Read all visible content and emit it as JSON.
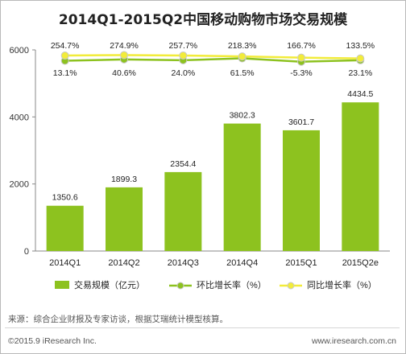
{
  "title": "2014Q1-2015Q2中国移动购物市场交易规模",
  "source_note": "来源：综合企业财报及专家访谈，根据艾瑞统计模型核算。",
  "copyright": "©2015.9 iResearch Inc.",
  "website": "www.iresearch.com.cn",
  "chart_data": {
    "type": "bar",
    "categories": [
      "2014Q1",
      "2014Q2",
      "2014Q3",
      "2014Q4",
      "2015Q1",
      "2015Q2e"
    ],
    "ylim": [
      0,
      6000
    ],
    "yticks": [
      0,
      2000,
      4000,
      6000
    ],
    "grid": false,
    "legend_position": "bottom",
    "series": [
      {
        "name": "交易规模（亿元）",
        "kind": "bar",
        "color": "#8dc21f",
        "values": [
          1350.6,
          1899.3,
          2354.4,
          3802.3,
          3601.7,
          4434.5
        ],
        "labels": [
          "1350.6",
          "1899.3",
          "2354.4",
          "3802.3",
          "3601.7",
          "4434.5"
        ]
      },
      {
        "name": "环比增长率（%）",
        "kind": "line",
        "color": "#8dc21f",
        "values": [
          13.1,
          40.6,
          24.0,
          61.5,
          -5.3,
          23.1
        ],
        "labels": [
          "13.1%",
          "40.6%",
          "24.0%",
          "61.5%",
          "-5.3%",
          "23.1%"
        ]
      },
      {
        "name": "同比增长率（%）",
        "kind": "line",
        "color": "#f2ec3a",
        "values": [
          254.7,
          274.9,
          257.7,
          218.3,
          166.7,
          133.5
        ],
        "labels": [
          "254.7%",
          "274.9%",
          "257.7%",
          "218.3%",
          "166.7%",
          "133.5%"
        ]
      }
    ]
  }
}
